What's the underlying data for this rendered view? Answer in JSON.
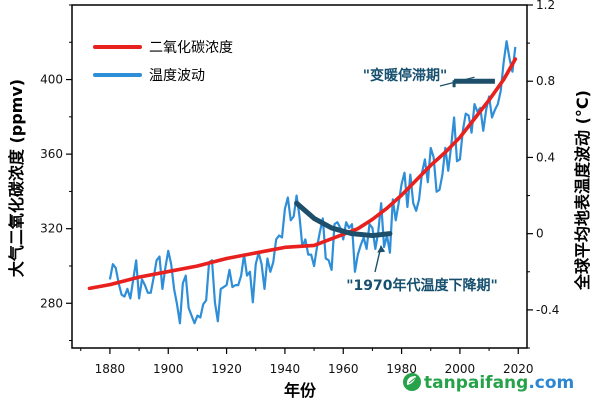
{
  "colors": {
    "co2": "#e8201e",
    "temp": "#2f8ed8",
    "annot": "#1d4f6a",
    "wm_green": "#26a34a",
    "wm_blue": "#2c86d1"
  },
  "watermark": {
    "text_main": "tanpaifang",
    "text_suffix": ".com",
    "icon": "recycle-leaf-icon"
  },
  "chart_data": {
    "type": "line",
    "title": "",
    "xlabel": "年份",
    "ylabel_left": "大气二氧化碳浓度 (ppmv)",
    "ylabel_right": "全球平均地表温度波动 (°C)",
    "xlim": [
      1867,
      2023
    ],
    "ylim_left": [
      256,
      440
    ],
    "ylim_right": [
      -0.6,
      1.2
    ],
    "x_ticks": [
      1880,
      1900,
      1920,
      1940,
      1960,
      1980,
      2000,
      2020
    ],
    "y_left_ticks": [
      280,
      320,
      360,
      400
    ],
    "y_right_ticks": [
      -0.4,
      0,
      0.4,
      0.8,
      1.2
    ],
    "y_right_tick_labels": [
      "-0.4",
      "0",
      "0.4",
      "0.8",
      "1.2"
    ],
    "legend": {
      "position": "top-left",
      "entries": [
        "二氧化碳浓度",
        "温度波动"
      ]
    },
    "series": [
      {
        "name": "二氧化碳浓度",
        "axis": "left",
        "x": [
          1873,
          1880,
          1890,
          1900,
          1910,
          1920,
          1930,
          1940,
          1950,
          1960,
          1965,
          1970,
          1975,
          1980,
          1985,
          1990,
          1995,
          2000,
          2005,
          2010,
          2015,
          2019
        ],
        "y": [
          288,
          290,
          294,
          297,
          300,
          304,
          307,
          310,
          311,
          317,
          320,
          325,
          331,
          338,
          346,
          354,
          361,
          369,
          379,
          389,
          400,
          411
        ]
      },
      {
        "name": "温度波动",
        "axis": "right",
        "x": [
          1880,
          1881,
          1882,
          1883,
          1884,
          1885,
          1886,
          1887,
          1888,
          1889,
          1890,
          1891,
          1892,
          1893,
          1894,
          1895,
          1896,
          1897,
          1898,
          1899,
          1900,
          1901,
          1902,
          1903,
          1904,
          1905,
          1906,
          1907,
          1908,
          1909,
          1910,
          1911,
          1912,
          1913,
          1914,
          1915,
          1916,
          1917,
          1918,
          1919,
          1920,
          1921,
          1922,
          1923,
          1924,
          1925,
          1926,
          1927,
          1928,
          1929,
          1930,
          1931,
          1932,
          1933,
          1934,
          1935,
          1936,
          1937,
          1938,
          1939,
          1940,
          1941,
          1942,
          1943,
          1944,
          1945,
          1946,
          1947,
          1948,
          1949,
          1950,
          1951,
          1952,
          1953,
          1954,
          1955,
          1956,
          1957,
          1958,
          1959,
          1960,
          1961,
          1962,
          1963,
          1964,
          1965,
          1966,
          1967,
          1968,
          1969,
          1970,
          1971,
          1972,
          1973,
          1974,
          1975,
          1976,
          1977,
          1978,
          1979,
          1980,
          1981,
          1982,
          1983,
          1984,
          1985,
          1986,
          1987,
          1988,
          1989,
          1990,
          1991,
          1992,
          1993,
          1994,
          1995,
          1996,
          1997,
          1998,
          1999,
          2000,
          2001,
          2002,
          2003,
          2004,
          2005,
          2006,
          2007,
          2008,
          2009,
          2010,
          2011,
          2012,
          2013,
          2014,
          2015,
          2016,
          2017,
          2018,
          2019
        ],
        "y": [
          -0.24,
          -0.16,
          -0.18,
          -0.26,
          -0.32,
          -0.33,
          -0.29,
          -0.34,
          -0.24,
          -0.14,
          -0.34,
          -0.24,
          -0.27,
          -0.31,
          -0.31,
          -0.23,
          -0.14,
          -0.12,
          -0.29,
          -0.18,
          -0.09,
          -0.16,
          -0.29,
          -0.37,
          -0.47,
          -0.26,
          -0.22,
          -0.39,
          -0.43,
          -0.47,
          -0.43,
          -0.44,
          -0.37,
          -0.35,
          -0.15,
          -0.14,
          -0.36,
          -0.46,
          -0.29,
          -0.28,
          -0.27,
          -0.19,
          -0.28,
          -0.27,
          -0.27,
          -0.22,
          -0.11,
          -0.22,
          -0.2,
          -0.36,
          -0.16,
          -0.1,
          -0.16,
          -0.29,
          -0.13,
          -0.2,
          -0.15,
          -0.03,
          -0.01,
          -0.02,
          0.13,
          0.19,
          0.07,
          0.09,
          0.2,
          0.09,
          -0.07,
          -0.03,
          -0.11,
          -0.11,
          -0.17,
          -0.07,
          0.01,
          0.08,
          -0.13,
          -0.14,
          -0.19,
          0.05,
          0.06,
          0.03,
          -0.03,
          0.06,
          0.03,
          0.05,
          -0.2,
          -0.11,
          -0.06,
          -0.02,
          -0.08,
          0.05,
          0.03,
          -0.08,
          0.01,
          0.16,
          -0.07,
          -0.01,
          -0.1,
          0.18,
          0.07,
          0.16,
          0.26,
          0.32,
          0.14,
          0.31,
          0.16,
          0.12,
          0.18,
          0.32,
          0.39,
          0.27,
          0.45,
          0.4,
          0.22,
          0.23,
          0.31,
          0.45,
          0.33,
          0.46,
          0.61,
          0.38,
          0.39,
          0.54,
          0.63,
          0.62,
          0.53,
          0.68,
          0.64,
          0.66,
          0.54,
          0.65,
          0.72,
          0.61,
          0.65,
          0.68,
          0.75,
          0.9,
          1.01,
          0.92,
          0.85,
          0.98
        ]
      }
    ],
    "annotations": [
      {
        "text": "\"变暖停滞期\"",
        "segment": {
          "x_start": 1998,
          "x_end": 2012,
          "y": 0.8
        }
      },
      {
        "text": "\"1970年代温度下降期\"",
        "curve": {
          "x": [
            1944,
            1950,
            1956,
            1963,
            1970,
            1976
          ],
          "y": 0.0,
          "y_path": [
            0.16,
            0.08,
            0.03,
            0.0,
            -0.01,
            0.0
          ]
        }
      }
    ]
  }
}
